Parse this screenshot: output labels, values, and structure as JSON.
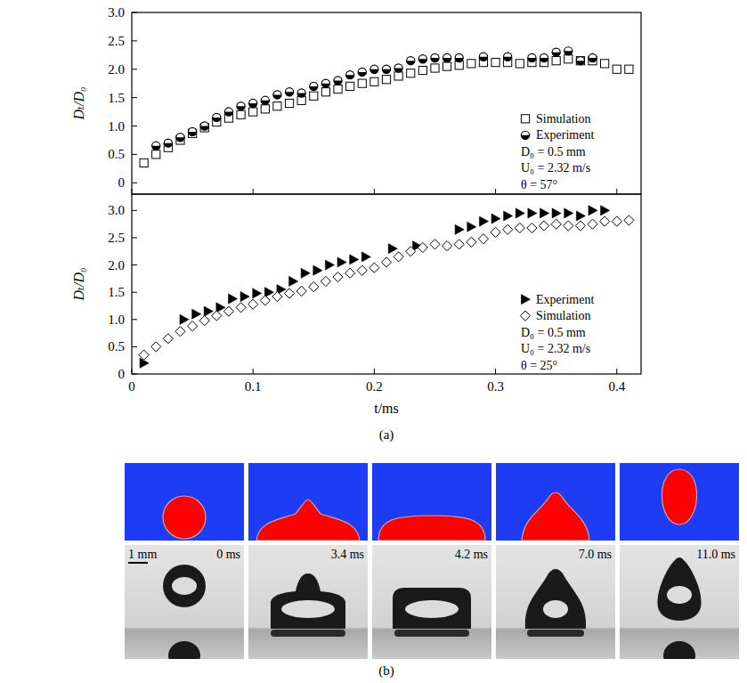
{
  "chart_data": [
    {
      "type": "scatter",
      "ylabel": "Dₜ/D₀",
      "xlim": [
        0,
        0.42
      ],
      "ylim": [
        -0.2,
        3.0
      ],
      "xticks": [
        0,
        0.1,
        0.2,
        0.3,
        0.4
      ],
      "yticks": [
        0,
        0.5,
        {
          "value": 1,
          "label": "1.0"
        },
        1.5,
        {
          "value": 2,
          "label": "2.0"
        },
        2.5,
        {
          "value": 3,
          "label": "3.0"
        }
      ],
      "tick_labels": "y",
      "legend": "right",
      "annotations": [
        "D₀ = 0.5 mm",
        "U₀ = 2.32 m/s",
        "θ = 57°"
      ],
      "series": [
        {
          "name": "Simulation",
          "marker": "square",
          "color": "#000000",
          "x": [
            0.01,
            0.02,
            0.03,
            0.04,
            0.05,
            0.06,
            0.07,
            0.08,
            0.09,
            0.1,
            0.11,
            0.12,
            0.13,
            0.14,
            0.15,
            0.16,
            0.17,
            0.18,
            0.19,
            0.2,
            0.21,
            0.22,
            0.23,
            0.24,
            0.25,
            0.26,
            0.27,
            0.28,
            0.29,
            0.3,
            0.31,
            0.32,
            0.33,
            0.34,
            0.35,
            0.36,
            0.37,
            0.38,
            0.39,
            0.4,
            0.41
          ],
          "values": [
            0.35,
            0.5,
            0.62,
            0.75,
            0.87,
            0.97,
            1.07,
            1.14,
            1.2,
            1.25,
            1.3,
            1.35,
            1.4,
            1.45,
            1.53,
            1.6,
            1.65,
            1.7,
            1.75,
            1.78,
            1.82,
            1.88,
            1.93,
            1.98,
            2.02,
            2.05,
            2.07,
            2.1,
            2.12,
            2.12,
            2.12,
            2.1,
            2.12,
            2.12,
            2.15,
            2.18,
            2.15,
            2.15,
            2.1,
            2.0,
            2.0
          ]
        },
        {
          "name": "Experiment",
          "marker": "half-circle",
          "color": "#000000",
          "x": [
            0.02,
            0.03,
            0.04,
            0.05,
            0.06,
            0.07,
            0.08,
            0.09,
            0.1,
            0.11,
            0.12,
            0.13,
            0.14,
            0.15,
            0.16,
            0.17,
            0.18,
            0.19,
            0.2,
            0.21,
            0.22,
            0.23,
            0.24,
            0.25,
            0.26,
            0.27,
            0.29,
            0.31,
            0.33,
            0.34,
            0.35,
            0.36,
            0.37,
            0.38
          ],
          "values": [
            0.65,
            0.7,
            0.8,
            0.9,
            1.0,
            1.15,
            1.25,
            1.35,
            1.4,
            1.45,
            1.55,
            1.6,
            1.58,
            1.7,
            1.75,
            1.8,
            1.9,
            1.95,
            2.0,
            2.0,
            2.02,
            2.15,
            2.18,
            2.2,
            2.2,
            2.2,
            2.22,
            2.22,
            2.2,
            2.2,
            2.3,
            2.32,
            2.15,
            2.2
          ]
        }
      ]
    },
    {
      "type": "scatter",
      "xlabel": "t/ms",
      "ylabel": "Dₜ/D₀",
      "xlim": [
        0,
        0.42
      ],
      "ylim": [
        0,
        3.3
      ],
      "xticks": [
        0,
        0.1,
        0.2,
        0.3,
        0.4
      ],
      "yticks": [
        0,
        0.5,
        {
          "value": 1,
          "label": "1.0"
        },
        1.5,
        {
          "value": 2,
          "label": "2.0"
        },
        2.5,
        {
          "value": 3,
          "label": "3.0"
        }
      ],
      "legend": "right",
      "annotations": [
        "D₀ = 0.5 mm",
        "U₀ = 2.32 m/s",
        "θ = 25°"
      ],
      "series": [
        {
          "name": "Experiment",
          "marker": "triangle-right",
          "color": "#000000",
          "x": [
            0.01,
            0.043,
            0.053,
            0.063,
            0.073,
            0.083,
            0.093,
            0.103,
            0.113,
            0.123,
            0.133,
            0.143,
            0.153,
            0.163,
            0.173,
            0.183,
            0.193,
            0.215,
            0.235,
            0.27,
            0.28,
            0.29,
            0.3,
            0.31,
            0.32,
            0.33,
            0.34,
            0.35,
            0.36,
            0.37,
            0.38,
            0.39
          ],
          "values": [
            0.2,
            1.0,
            1.1,
            1.15,
            1.22,
            1.38,
            1.42,
            1.48,
            1.5,
            1.55,
            1.7,
            1.85,
            1.9,
            2.0,
            2.05,
            2.1,
            2.15,
            2.3,
            2.35,
            2.65,
            2.7,
            2.8,
            2.85,
            2.9,
            2.95,
            2.95,
            2.95,
            2.95,
            2.95,
            2.9,
            3.0,
            3.0
          ]
        },
        {
          "name": "Simulation",
          "marker": "diamond",
          "color": "#000000",
          "x": [
            0.01,
            0.02,
            0.03,
            0.04,
            0.05,
            0.06,
            0.07,
            0.08,
            0.09,
            0.1,
            0.11,
            0.12,
            0.13,
            0.14,
            0.15,
            0.16,
            0.17,
            0.18,
            0.19,
            0.2,
            0.21,
            0.22,
            0.23,
            0.24,
            0.25,
            0.26,
            0.27,
            0.28,
            0.29,
            0.3,
            0.31,
            0.32,
            0.33,
            0.34,
            0.35,
            0.36,
            0.37,
            0.38,
            0.39,
            0.4,
            0.41
          ],
          "values": [
            0.35,
            0.5,
            0.65,
            0.78,
            0.88,
            0.98,
            1.07,
            1.15,
            1.22,
            1.28,
            1.35,
            1.42,
            1.48,
            1.52,
            1.6,
            1.7,
            1.78,
            1.85,
            1.9,
            1.95,
            2.05,
            2.15,
            2.25,
            2.32,
            2.38,
            2.35,
            2.38,
            2.42,
            2.48,
            2.6,
            2.65,
            2.68,
            2.68,
            2.72,
            2.75,
            2.72,
            2.72,
            2.75,
            2.8,
            2.8,
            2.82
          ]
        }
      ]
    }
  ],
  "figure": {
    "panel_labels": [
      "(a)",
      "(b)"
    ],
    "scale_bar": "1 mm",
    "frame_times": [
      "0 ms",
      "3.4 ms",
      "4.2 ms",
      "7.0 ms",
      "11.0 ms"
    ]
  }
}
